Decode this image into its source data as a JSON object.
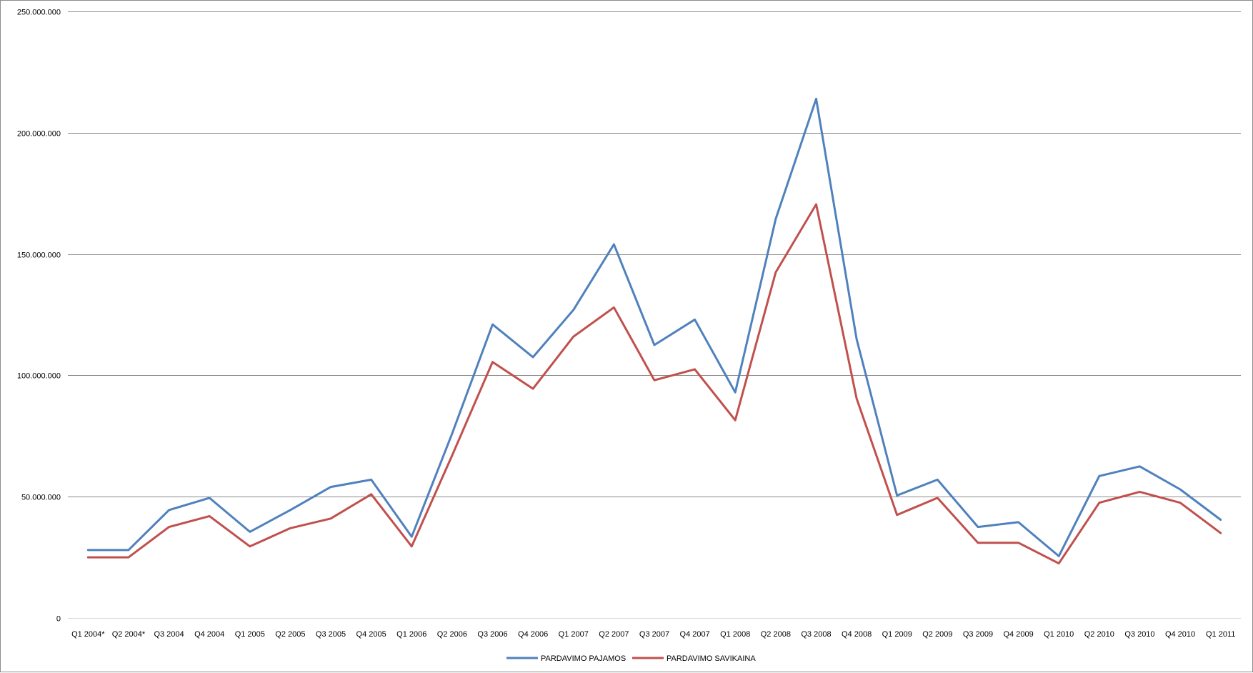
{
  "chart_data": {
    "type": "line",
    "title": "",
    "xlabel": "",
    "ylabel": "",
    "categories": [
      "Q1 2004*",
      "Q2 2004*",
      "Q3 2004",
      "Q4 2004",
      "Q1 2005",
      "Q2 2005",
      "Q3 2005",
      "Q4 2005",
      "Q1 2006",
      "Q2 2006",
      "Q3 2006",
      "Q4 2006",
      "Q1 2007",
      "Q2 2007",
      "Q3 2007",
      "Q4 2007",
      "Q1 2008",
      "Q2 2008",
      "Q3 2008",
      "Q4 2008",
      "Q1 2009",
      "Q2 2009",
      "Q3 2009",
      "Q4 2009",
      "Q1 2010",
      "Q2 2010",
      "Q3 2010",
      "Q4 2010",
      "Q1 2011"
    ],
    "y_ticks": [
      0,
      50000000,
      100000000,
      150000000,
      200000000,
      250000000
    ],
    "y_tick_labels": [
      "0",
      "50.000.000",
      "100.000.000",
      "150.000.000",
      "200.000.000",
      "250.000.000"
    ],
    "ylim": [
      0,
      250000000
    ],
    "grid": true,
    "legend_position": "bottom",
    "series": [
      {
        "name": "PARDAVIMO PAJAMOS",
        "color": "#4F81BD",
        "values": [
          28000000,
          28000000,
          44500000,
          49500000,
          35500000,
          44500000,
          54000000,
          57000000,
          33500000,
          76000000,
          121000000,
          107500000,
          127000000,
          154000000,
          112500000,
          123000000,
          93000000,
          164500000,
          214000000,
          115000000,
          50500000,
          57000000,
          37500000,
          39500000,
          25500000,
          58500000,
          62500000,
          53000000,
          40500000
        ]
      },
      {
        "name": "PARDAVIMO SAVIKAINA",
        "color": "#C0504D",
        "values": [
          25000000,
          25000000,
          37500000,
          42000000,
          29500000,
          37000000,
          41000000,
          51000000,
          29500000,
          67000000,
          105500000,
          94500000,
          116000000,
          128000000,
          98000000,
          102500000,
          81500000,
          142500000,
          170500000,
          90500000,
          42500000,
          49500000,
          31000000,
          31000000,
          22500000,
          47500000,
          52000000,
          47500000,
          35000000
        ]
      }
    ]
  }
}
